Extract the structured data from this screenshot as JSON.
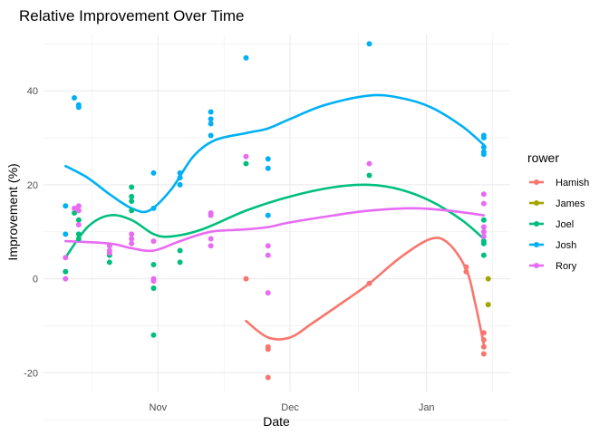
{
  "chart_data": {
    "type": "scatter",
    "title": "Relative Improvement Over Time",
    "xlabel": "Date",
    "ylabel": "Improvement (%)",
    "xlim": [
      "2024-10-06",
      "2025-01-20"
    ],
    "ylim": [
      -24,
      52
    ],
    "x_ticks": [
      {
        "date": "2024-11-01",
        "label": "Nov"
      },
      {
        "date": "2024-12-01",
        "label": "Dec"
      },
      {
        "date": "2025-01-01",
        "label": "Jan"
      }
    ],
    "y_ticks": [
      -20,
      0,
      20,
      40
    ],
    "grid": true,
    "legend": {
      "title": "rower",
      "position": "right"
    },
    "series": [
      {
        "name": "Hamish",
        "color": "#F8766D",
        "points": [
          [
            "2024-11-21",
            0
          ],
          [
            "2024-11-26",
            -14.5
          ],
          [
            "2024-11-26",
            -15
          ],
          [
            "2024-11-26",
            -21
          ],
          [
            "2024-12-19",
            -1
          ],
          [
            "2025-01-10",
            2.5
          ],
          [
            "2025-01-10",
            1.5
          ],
          [
            "2025-01-14",
            -11.5
          ],
          [
            "2025-01-14",
            -13
          ],
          [
            "2025-01-14",
            -14.5
          ],
          [
            "2025-01-14",
            -16
          ]
        ],
        "trend": [
          [
            "2024-11-21",
            -9
          ],
          [
            "2024-11-26",
            -12.5
          ],
          [
            "2024-12-01",
            -12.5
          ],
          [
            "2024-12-06",
            -9.5
          ],
          [
            "2024-12-13",
            -5
          ],
          [
            "2024-12-19",
            -1
          ],
          [
            "2024-12-26",
            4.5
          ],
          [
            "2025-01-02",
            8.5
          ],
          [
            "2025-01-06",
            7.5
          ],
          [
            "2025-01-10",
            2
          ],
          [
            "2025-01-12",
            -5
          ],
          [
            "2025-01-14",
            -14
          ]
        ]
      },
      {
        "name": "James",
        "color": "#A3A500",
        "points": [
          [
            "2025-01-15",
            0
          ],
          [
            "2025-01-15",
            -5.5
          ]
        ],
        "trend": []
      },
      {
        "name": "Joel",
        "color": "#00BF7D",
        "points": [
          [
            "2024-10-11",
            1.5
          ],
          [
            "2024-10-13",
            14
          ],
          [
            "2024-10-14",
            12.5
          ],
          [
            "2024-10-14",
            9.5
          ],
          [
            "2024-10-14",
            8.5
          ],
          [
            "2024-10-21",
            5
          ],
          [
            "2024-10-21",
            3.5
          ],
          [
            "2024-10-26",
            19.5
          ],
          [
            "2024-10-26",
            17.5
          ],
          [
            "2024-10-26",
            16.5
          ],
          [
            "2024-10-26",
            14.5
          ],
          [
            "2024-10-31",
            3
          ],
          [
            "2024-10-31",
            -2
          ],
          [
            "2024-10-31",
            -12
          ],
          [
            "2024-11-06",
            6
          ],
          [
            "2024-11-06",
            3.5
          ],
          [
            "2024-11-21",
            24.5
          ],
          [
            "2024-12-19",
            22
          ],
          [
            "2025-01-14",
            12.5
          ],
          [
            "2025-01-14",
            8
          ],
          [
            "2025-01-14",
            7.5
          ],
          [
            "2025-01-14",
            5
          ]
        ],
        "trend": [
          [
            "2024-10-11",
            4.5
          ],
          [
            "2024-10-16",
            11
          ],
          [
            "2024-10-21",
            13.5
          ],
          [
            "2024-10-26",
            12.5
          ],
          [
            "2024-10-31",
            9.5
          ],
          [
            "2024-11-04",
            9
          ],
          [
            "2024-11-11",
            10.5
          ],
          [
            "2024-11-21",
            14.5
          ],
          [
            "2024-12-01",
            17.5
          ],
          [
            "2024-12-11",
            19.5
          ],
          [
            "2024-12-19",
            20
          ],
          [
            "2024-12-26",
            19
          ],
          [
            "2025-01-02",
            16.5
          ],
          [
            "2025-01-09",
            12.5
          ],
          [
            "2025-01-14",
            8.5
          ]
        ]
      },
      {
        "name": "Josh",
        "color": "#00B0F6",
        "points": [
          [
            "2024-10-11",
            15.5
          ],
          [
            "2024-10-11",
            9.5
          ],
          [
            "2024-10-13",
            38.5
          ],
          [
            "2024-10-14",
            37
          ],
          [
            "2024-10-14",
            36.5
          ],
          [
            "2024-10-31",
            22.5
          ],
          [
            "2024-10-31",
            15
          ],
          [
            "2024-11-06",
            22.5
          ],
          [
            "2024-11-06",
            21.5
          ],
          [
            "2024-11-06",
            20
          ],
          [
            "2024-11-13",
            35.5
          ],
          [
            "2024-11-13",
            34
          ],
          [
            "2024-11-13",
            33
          ],
          [
            "2024-11-13",
            30.5
          ],
          [
            "2024-11-21",
            47
          ],
          [
            "2024-11-26",
            25.5
          ],
          [
            "2024-11-26",
            23.5
          ],
          [
            "2024-11-26",
            13.5
          ],
          [
            "2024-12-19",
            50
          ],
          [
            "2025-01-14",
            30.5
          ],
          [
            "2025-01-14",
            30
          ],
          [
            "2025-01-14",
            28
          ],
          [
            "2025-01-14",
            27
          ],
          [
            "2025-01-14",
            26.5
          ]
        ],
        "trend": [
          [
            "2024-10-11",
            24
          ],
          [
            "2024-10-16",
            21.5
          ],
          [
            "2024-10-21",
            18
          ],
          [
            "2024-10-26",
            15
          ],
          [
            "2024-10-30",
            14.5
          ],
          [
            "2024-11-04",
            19
          ],
          [
            "2024-11-09",
            26
          ],
          [
            "2024-11-14",
            29.5
          ],
          [
            "2024-11-21",
            31
          ],
          [
            "2024-11-26",
            32
          ],
          [
            "2024-12-01",
            34
          ],
          [
            "2024-12-09",
            37
          ],
          [
            "2024-12-19",
            39
          ],
          [
            "2024-12-26",
            38.5
          ],
          [
            "2025-01-02",
            36.5
          ],
          [
            "2025-01-09",
            32.5
          ],
          [
            "2025-01-14",
            28.5
          ]
        ]
      },
      {
        "name": "Rory",
        "color": "#E76BF3",
        "points": [
          [
            "2024-10-11",
            4.5
          ],
          [
            "2024-10-11",
            0
          ],
          [
            "2024-10-13",
            15
          ],
          [
            "2024-10-14",
            15.5
          ],
          [
            "2024-10-14",
            14.5
          ],
          [
            "2024-10-14",
            11.5
          ],
          [
            "2024-10-21",
            7
          ],
          [
            "2024-10-21",
            6
          ],
          [
            "2024-10-21",
            5.5
          ],
          [
            "2024-10-26",
            9.5
          ],
          [
            "2024-10-26",
            8.5
          ],
          [
            "2024-10-26",
            7.5
          ],
          [
            "2024-10-31",
            8
          ],
          [
            "2024-10-31",
            0
          ],
          [
            "2024-10-31",
            -0.5
          ],
          [
            "2024-11-13",
            14
          ],
          [
            "2024-11-13",
            13.5
          ],
          [
            "2024-11-13",
            8.5
          ],
          [
            "2024-11-13",
            7
          ],
          [
            "2024-11-21",
            26
          ],
          [
            "2024-11-26",
            7
          ],
          [
            "2024-11-26",
            5
          ],
          [
            "2024-11-26",
            -3
          ],
          [
            "2024-12-19",
            24.5
          ],
          [
            "2025-01-14",
            18
          ],
          [
            "2025-01-14",
            16
          ],
          [
            "2025-01-14",
            11
          ],
          [
            "2025-01-14",
            10
          ],
          [
            "2025-01-14",
            9
          ]
        ],
        "trend": [
          [
            "2024-10-11",
            8
          ],
          [
            "2024-10-21",
            7.5
          ],
          [
            "2024-10-26",
            6.5
          ],
          [
            "2024-10-31",
            6
          ],
          [
            "2024-11-06",
            8
          ],
          [
            "2024-11-13",
            10
          ],
          [
            "2024-11-21",
            10.5
          ],
          [
            "2024-11-26",
            11
          ],
          [
            "2024-12-01",
            12
          ],
          [
            "2024-12-11",
            13.5
          ],
          [
            "2024-12-19",
            14.5
          ],
          [
            "2024-12-29",
            15
          ],
          [
            "2025-01-06",
            14.5
          ],
          [
            "2025-01-14",
            13.5
          ]
        ]
      }
    ]
  }
}
